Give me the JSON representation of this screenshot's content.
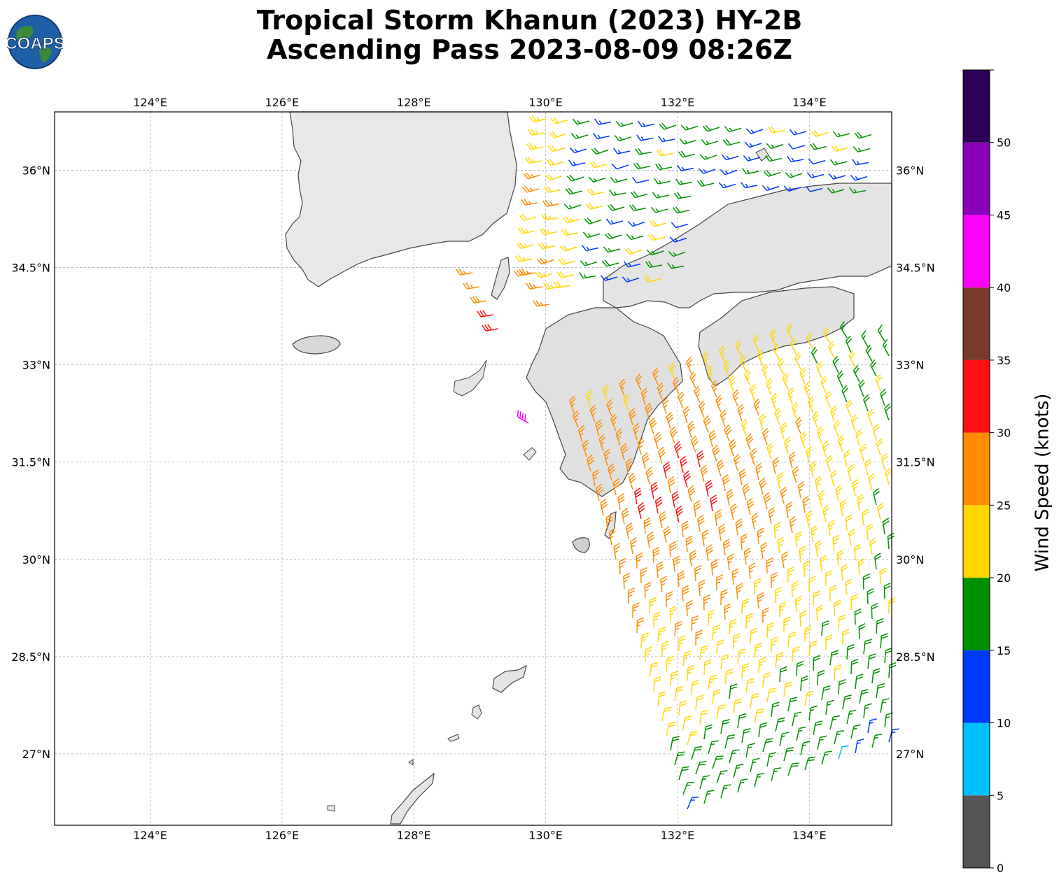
{
  "title": {
    "line1": "Tropical Storm Khanun (2023) HY-2B",
    "line2": "Ascending Pass 2023-08-09 08:26Z"
  },
  "logo": {
    "text": "COAPS"
  },
  "map": {
    "lon_ticks": [
      "124°E",
      "126°E",
      "128°E",
      "130°E",
      "132°E",
      "134°E"
    ],
    "lat_ticks": [
      "36°N",
      "34.5°N",
      "33°N",
      "31.5°N",
      "30°N",
      "28.5°N",
      "27°N"
    ],
    "lon_range": [
      122.55,
      135.25
    ],
    "lat_range": [
      25.9,
      36.9
    ],
    "grid": true
  },
  "colorbar": {
    "label": "Wind Speed (knots)",
    "ticks": [
      "0",
      "5",
      "10",
      "15",
      "20",
      "25",
      "30",
      "35",
      "40",
      "45",
      "50"
    ],
    "bins": [
      {
        "min": 0,
        "max": 5,
        "color": "#555555"
      },
      {
        "min": 5,
        "max": 10,
        "color": "#00bfff"
      },
      {
        "min": 10,
        "max": 15,
        "color": "#0038ff"
      },
      {
        "min": 15,
        "max": 20,
        "color": "#009000"
      },
      {
        "min": 20,
        "max": 25,
        "color": "#ffd700"
      },
      {
        "min": 25,
        "max": 30,
        "color": "#ff8c00"
      },
      {
        "min": 30,
        "max": 35,
        "color": "#ff1010"
      },
      {
        "min": 35,
        "max": 40,
        "color": "#7a3a2a"
      },
      {
        "min": 40,
        "max": 45,
        "color": "#ff00ff"
      },
      {
        "min": 45,
        "max": 50,
        "color": "#8a00b8"
      },
      {
        "min": 50,
        "max": 55,
        "color": "#2d0055"
      }
    ]
  }
}
